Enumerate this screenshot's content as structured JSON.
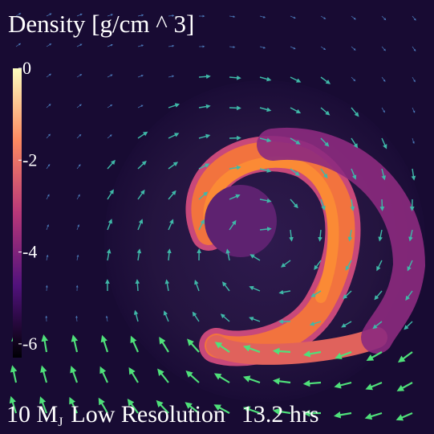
{
  "title": "Density [g/cm ^ 3]",
  "colorbar": {
    "lim": [
      -6.3,
      0
    ],
    "ticks": [
      0,
      -2,
      -4,
      -6
    ]
  },
  "caption": {
    "mass": "10 M",
    "mass_subscript": "J",
    "resolution": "Low Resolution",
    "time": "13.2 hrs"
  }
}
